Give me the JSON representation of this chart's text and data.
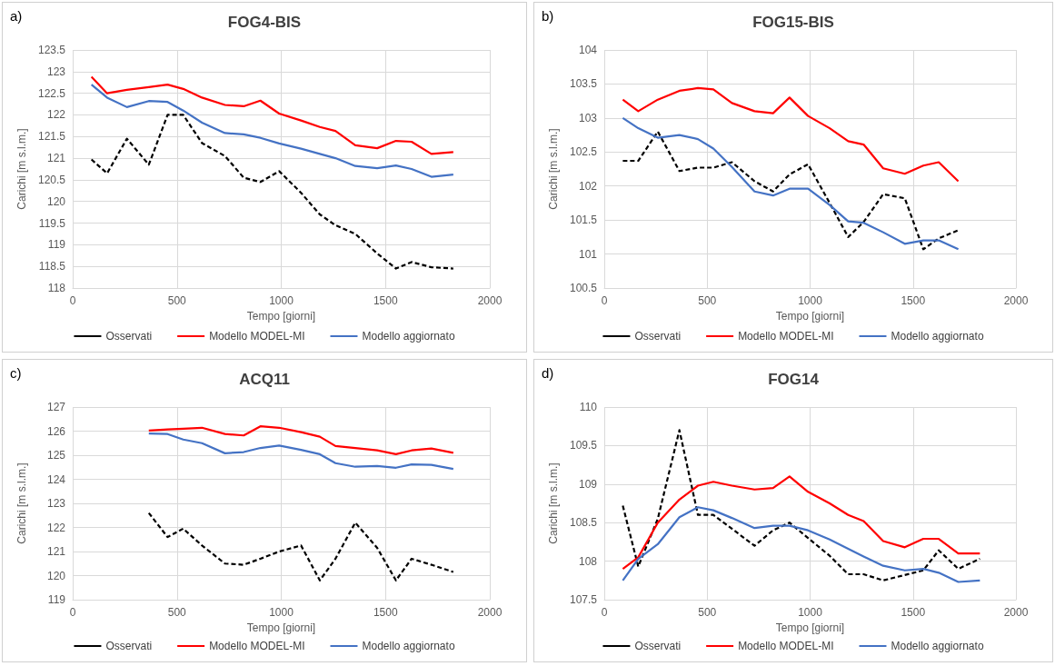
{
  "chart_data": [
    {
      "type": "line",
      "title": "FOG4-BIS",
      "annotations": [
        "a)"
      ],
      "xlabel": "Tempo [giorni]",
      "ylabel": "Carichi [m s.l.m.]",
      "xlim": [
        0,
        2000
      ],
      "xticks": [
        0,
        500,
        1000,
        1500,
        2000
      ],
      "ylim": [
        118,
        123.5
      ],
      "yticks": [
        118,
        118.5,
        119,
        119.5,
        120,
        120.5,
        121,
        121.5,
        122,
        122.5,
        123,
        123.5
      ],
      "grid": true,
      "legend": "bottom",
      "marker": "none",
      "x": [
        90,
        165,
        260,
        365,
        455,
        530,
        620,
        730,
        820,
        900,
        990,
        1095,
        1185,
        1260,
        1355,
        1460,
        1550,
        1625,
        1720,
        1825
      ],
      "series": [
        {
          "name": "Osservati",
          "color": "#000000",
          "line_style": "dashed",
          "values": [
            120.97,
            120.65,
            121.45,
            120.85,
            122.0,
            122.0,
            121.35,
            121.05,
            120.55,
            120.45,
            120.7,
            120.2,
            119.7,
            119.45,
            119.25,
            118.8,
            118.45,
            118.6,
            118.48,
            118.45
          ]
        },
        {
          "name": "Modello MODEL-MI",
          "color": "#ff0000",
          "line_style": "solid",
          "values": [
            122.88,
            122.5,
            122.58,
            122.64,
            122.7,
            122.6,
            122.4,
            122.23,
            122.2,
            122.33,
            122.03,
            121.87,
            121.72,
            121.63,
            121.3,
            121.23,
            121.4,
            121.38,
            121.1,
            121.14
          ]
        },
        {
          "name": "Modello aggiornato",
          "color": "#4472c4",
          "line_style": "solid",
          "values": [
            122.7,
            122.4,
            122.18,
            122.32,
            122.3,
            122.1,
            121.82,
            121.58,
            121.55,
            121.47,
            121.34,
            121.22,
            121.1,
            121.0,
            120.82,
            120.77,
            120.83,
            120.75,
            120.57,
            120.62
          ]
        }
      ]
    },
    {
      "type": "line",
      "title": "FOG15-BIS",
      "annotations": [
        "b)"
      ],
      "xlabel": "Tempo [giorni]",
      "ylabel": "Carichi [m s.l.m.]",
      "xlim": [
        0,
        2000
      ],
      "xticks": [
        0,
        500,
        1000,
        1500,
        2000
      ],
      "ylim": [
        100.5,
        104
      ],
      "yticks": [
        100.5,
        101,
        101.5,
        102,
        102.5,
        103,
        103.5,
        104
      ],
      "grid": true,
      "legend": "bottom",
      "marker": "none",
      "x": [
        90,
        165,
        260,
        365,
        455,
        530,
        620,
        730,
        820,
        900,
        990,
        1095,
        1185,
        1260,
        1355,
        1460,
        1550,
        1625,
        1720
      ],
      "series": [
        {
          "name": "Osservati",
          "color": "#000000",
          "line_style": "dashed",
          "values": [
            102.37,
            102.37,
            102.8,
            102.22,
            102.27,
            102.27,
            102.35,
            102.07,
            101.92,
            102.17,
            102.32,
            101.75,
            101.25,
            101.47,
            101.88,
            101.82,
            101.07,
            101.23,
            101.35
          ]
        },
        {
          "name": "Modello MODEL-MI",
          "color": "#ff0000",
          "line_style": "solid",
          "values": [
            103.27,
            103.1,
            103.27,
            103.4,
            103.44,
            103.42,
            103.22,
            103.1,
            103.07,
            103.3,
            103.03,
            102.85,
            102.66,
            102.61,
            102.26,
            102.18,
            102.3,
            102.35,
            102.07
          ]
        },
        {
          "name": "Modello aggiornato",
          "color": "#4472c4",
          "line_style": "solid",
          "values": [
            103.0,
            102.85,
            102.71,
            102.75,
            102.69,
            102.55,
            102.28,
            101.92,
            101.86,
            101.96,
            101.96,
            101.72,
            101.48,
            101.46,
            101.32,
            101.15,
            101.2,
            101.2,
            101.07
          ]
        }
      ]
    },
    {
      "type": "line",
      "title": "ACQ11",
      "annotations": [
        "c)"
      ],
      "xlabel": "Tempo [giorni]",
      "ylabel": "Carichi [m s.l.m.]",
      "xlim": [
        0,
        2000
      ],
      "xticks": [
        0,
        500,
        1000,
        1500,
        2000
      ],
      "ylim": [
        119,
        127
      ],
      "yticks": [
        119,
        120,
        121,
        122,
        123,
        124,
        125,
        126,
        127
      ],
      "grid": true,
      "legend": "bottom",
      "marker": "none",
      "x": [
        365,
        455,
        530,
        620,
        730,
        820,
        900,
        990,
        1095,
        1185,
        1260,
        1355,
        1460,
        1550,
        1625,
        1720,
        1825
      ],
      "series": [
        {
          "name": "Osservati",
          "color": "#000000",
          "line_style": "dashed",
          "values": [
            122.6,
            121.6,
            121.95,
            121.25,
            120.5,
            120.45,
            120.7,
            121.0,
            121.25,
            119.8,
            120.7,
            122.2,
            121.15,
            119.8,
            120.7,
            120.45,
            120.15
          ]
        },
        {
          "name": "Modello MODEL-MI",
          "color": "#ff0000",
          "line_style": "solid",
          "values": [
            126.02,
            126.07,
            126.1,
            126.14,
            125.88,
            125.82,
            126.2,
            126.14,
            125.96,
            125.77,
            125.38,
            125.3,
            125.2,
            125.04,
            125.2,
            125.28,
            125.1
          ]
        },
        {
          "name": "Modello aggiornato",
          "color": "#4472c4",
          "line_style": "solid",
          "values": [
            125.9,
            125.88,
            125.65,
            125.5,
            125.08,
            125.13,
            125.3,
            125.4,
            125.22,
            125.04,
            124.67,
            124.52,
            124.55,
            124.48,
            124.62,
            124.6,
            124.43
          ]
        }
      ]
    },
    {
      "type": "line",
      "title": "FOG14",
      "annotations": [
        "d)"
      ],
      "xlabel": "Tempo [giorni]",
      "ylabel": "Carichi [m s.l.m.]",
      "xlim": [
        0,
        2000
      ],
      "xticks": [
        0,
        500,
        1000,
        1500,
        2000
      ],
      "ylim": [
        107.5,
        110
      ],
      "yticks": [
        107.5,
        108,
        108.5,
        109,
        109.5,
        110
      ],
      "grid": true,
      "legend": "bottom",
      "marker": "none",
      "x": [
        90,
        165,
        260,
        365,
        455,
        530,
        620,
        730,
        820,
        900,
        990,
        1095,
        1185,
        1260,
        1355,
        1460,
        1550,
        1625,
        1720,
        1825
      ],
      "series": [
        {
          "name": "Osservati",
          "color": "#000000",
          "line_style": "dashed",
          "values": [
            108.72,
            107.93,
            108.55,
            109.7,
            108.6,
            108.6,
            108.42,
            108.2,
            108.4,
            108.5,
            108.3,
            108.07,
            107.83,
            107.83,
            107.75,
            107.82,
            107.88,
            108.14,
            107.9,
            108.03
          ]
        },
        {
          "name": "Modello MODEL-MI",
          "color": "#ff0000",
          "line_style": "solid",
          "values": [
            107.9,
            108.05,
            108.5,
            108.8,
            108.98,
            109.03,
            108.98,
            108.93,
            108.95,
            109.1,
            108.9,
            108.75,
            108.6,
            108.52,
            108.26,
            108.18,
            108.29,
            108.29,
            108.1,
            108.1
          ]
        },
        {
          "name": "Modello aggiornato",
          "color": "#4472c4",
          "line_style": "solid",
          "values": [
            107.75,
            108.03,
            108.22,
            108.57,
            108.7,
            108.66,
            108.56,
            108.43,
            108.46,
            108.46,
            108.4,
            108.28,
            108.16,
            108.06,
            107.94,
            107.88,
            107.9,
            107.85,
            107.73,
            107.75
          ]
        }
      ]
    }
  ]
}
